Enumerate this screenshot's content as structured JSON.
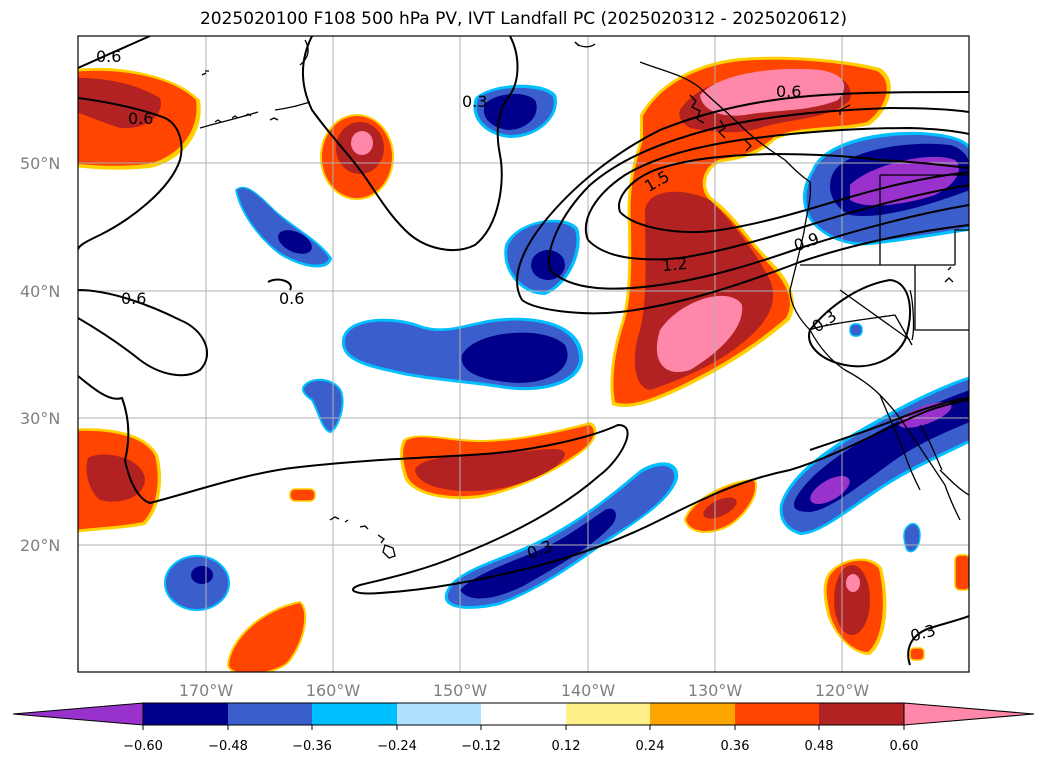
{
  "title": "2025020100 F108 500 hPa PV, IVT Landfall PC (2025020312 - 2025020612)",
  "lat_labels": [
    "50°N",
    "40°N",
    "30°N",
    "20°N"
  ],
  "lon_labels": [
    "170°W",
    "160°W",
    "150°W",
    "140°W",
    "130°W",
    "120°W"
  ],
  "contour_labels": [
    "0.6",
    "0.6",
    "0.3",
    "0.6",
    "0.6",
    "1.5",
    "1.2",
    "0.9",
    "0.3",
    "0.3",
    "0.3",
    "0.6"
  ],
  "colorbar": {
    "ticks": [
      "−0.60",
      "−0.48",
      "−0.36",
      "−0.24",
      "−0.12",
      "0.12",
      "0.24",
      "0.36",
      "0.48",
      "0.60"
    ],
    "colors": [
      "#9932cc",
      "#00008b",
      "#3a5fcd",
      "#00bfff",
      "#b0e2ff",
      "#ffffff",
      "#fff08a",
      "#ffa500",
      "#ff4500",
      "#b22222",
      "#ff88aa"
    ]
  },
  "palette": {
    "negative_light": "#00bfff",
    "negative_mid": "#3a5fcd",
    "negative_dark": "#00008b",
    "negative_extreme": "#9932cc",
    "positive_light": "#ffa500",
    "positive_mid": "#ff4500",
    "positive_dark": "#b22222",
    "positive_extreme": "#ff88aa",
    "gridline": "#b0b0b0",
    "coastline": "#000000",
    "contour": "#000000"
  }
}
